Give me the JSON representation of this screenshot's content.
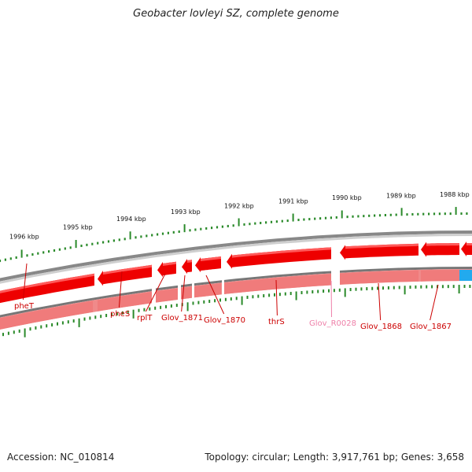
{
  "title": "Geobacter lovleyi SZ, complete genome",
  "footer": {
    "accession": "Accession: NC_010814",
    "summary": "Topology: circular; Length: 3,917,761 bp; Genes: 3,658"
  },
  "colors": {
    "gene_strong": "#ee0000",
    "gene_light": "#f08a8a",
    "rna_gene": "#f28ab5",
    "blue_feature": "#22aaee",
    "ticks": "#2a8a2a",
    "backbone": "#888888",
    "label_red": "#cc0000",
    "label_pink": "#ee7fa8"
  },
  "scale_labels": [
    "1996 kbp",
    "1995 kbp",
    "1994 kbp",
    "1993 kbp",
    "1992 kbp",
    "1991 kbp",
    "1990 kbp",
    "1989 kbp",
    "1988 kbp"
  ],
  "genes": [
    {
      "name": "pheT",
      "color": "label_red"
    },
    {
      "name": "pheS",
      "color": "label_red"
    },
    {
      "name": "rplT",
      "color": "label_red"
    },
    {
      "name": "Glov_1871",
      "color": "label_red"
    },
    {
      "name": "Glov_1870",
      "color": "label_red"
    },
    {
      "name": "thrS",
      "color": "label_red"
    },
    {
      "name": "Glov_R0028",
      "color": "label_pink"
    },
    {
      "name": "Glov_1868",
      "color": "label_red"
    },
    {
      "name": "Glov_1867",
      "color": "label_red"
    }
  ]
}
